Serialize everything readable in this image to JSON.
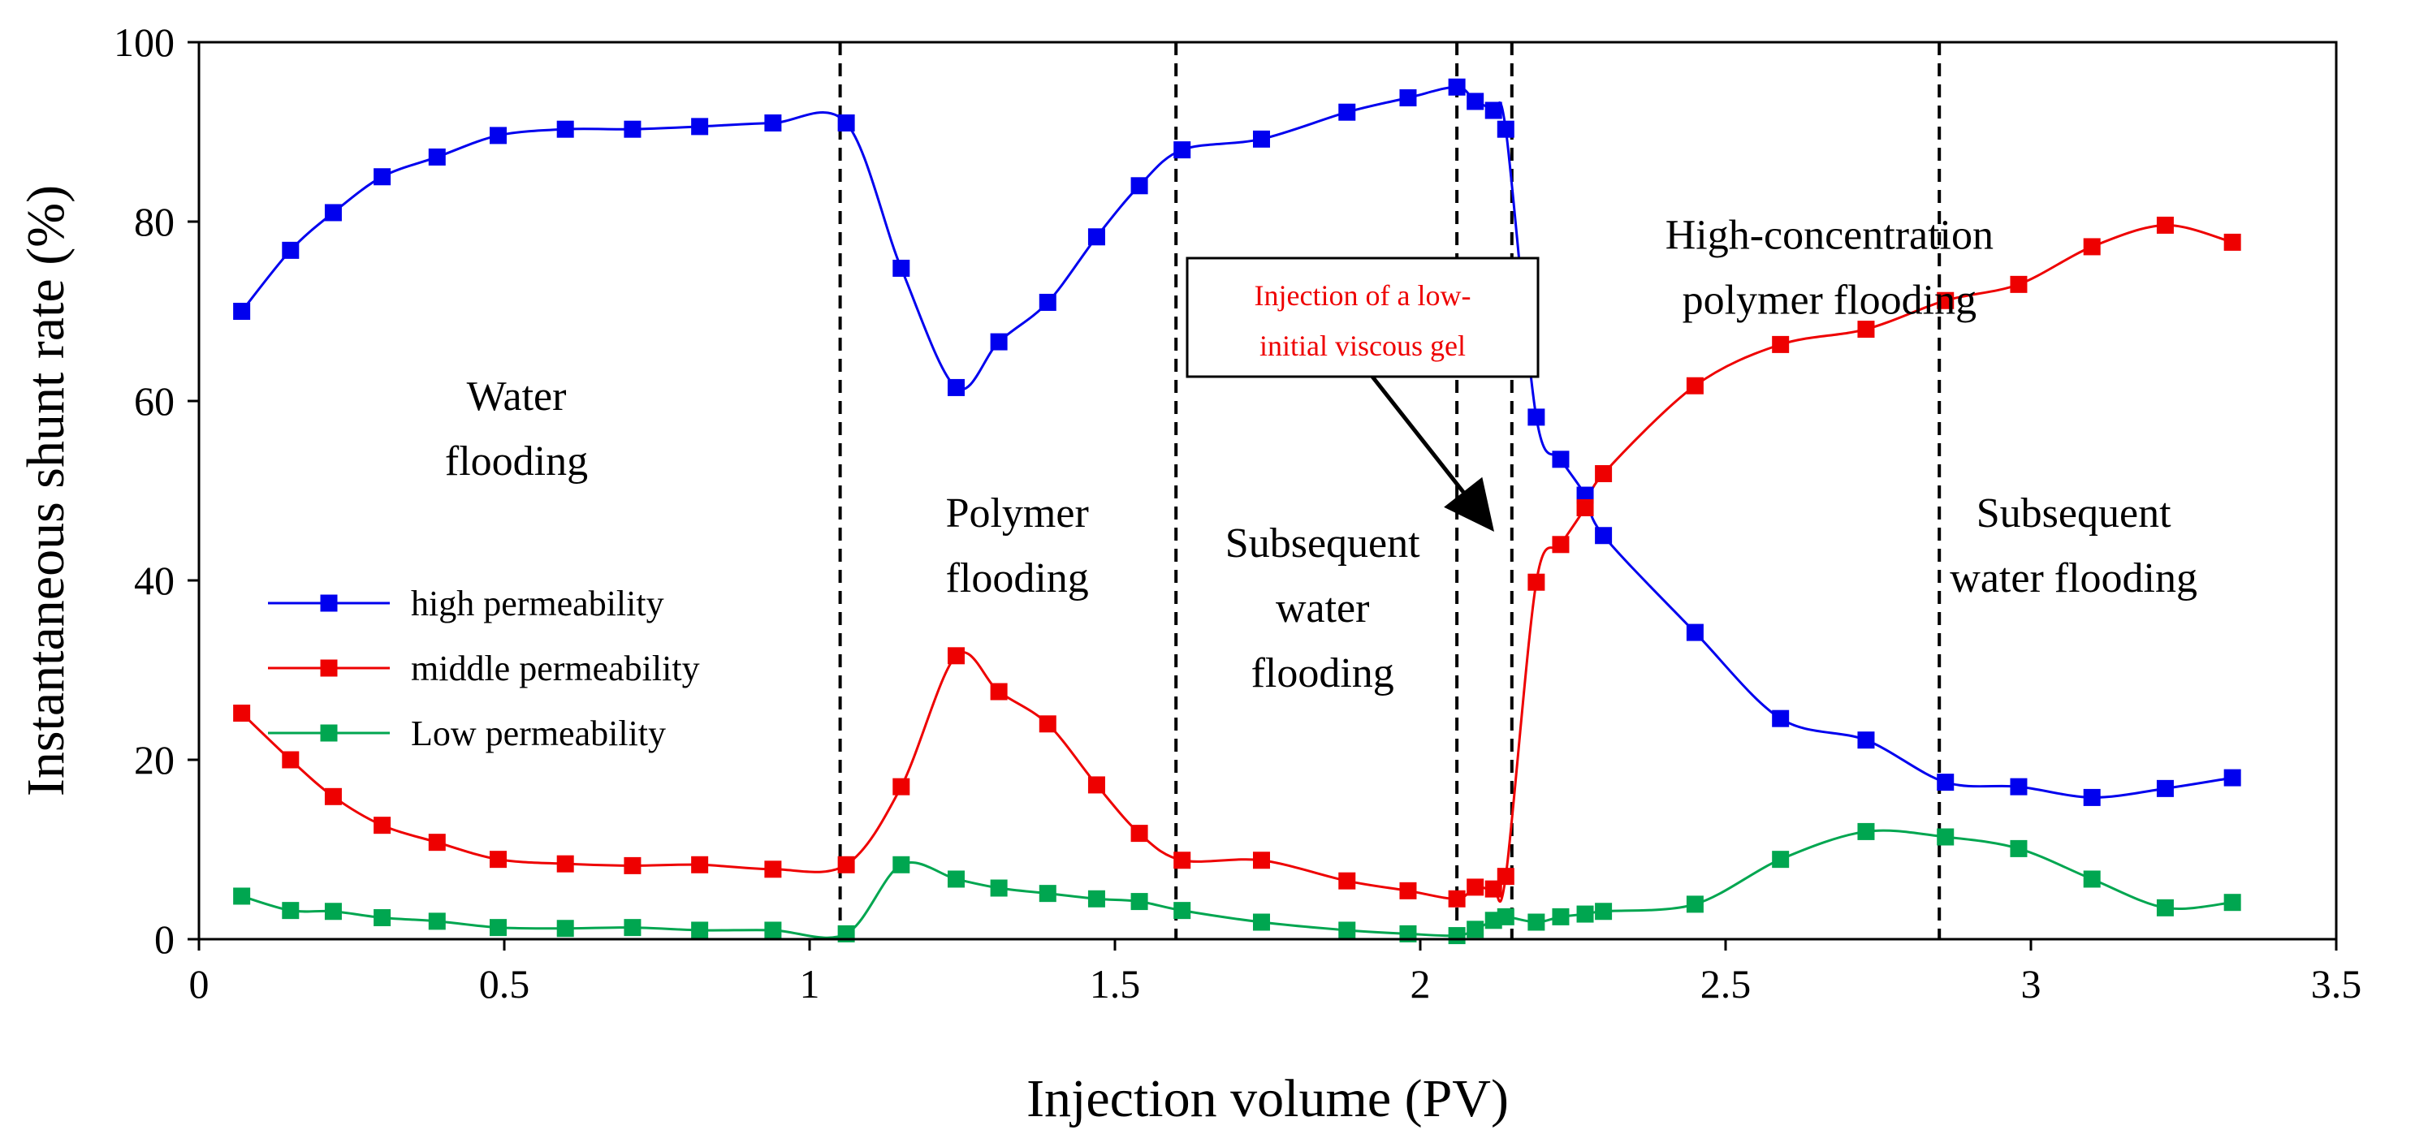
{
  "chart_data": {
    "type": "line",
    "xlabel": "Injection volume (PV)",
    "ylabel": "Instantaneous shunt rate (%)",
    "xlim": [
      0,
      3.5
    ],
    "ylim": [
      0,
      100
    ],
    "xticks": [
      "0",
      "0.5",
      "1",
      "1.5",
      "2",
      "2.5",
      "3",
      "3.5"
    ],
    "yticks": [
      "0",
      "20",
      "40",
      "60",
      "80",
      "100"
    ],
    "grid": false,
    "legend_position": "left-middle",
    "series": [
      {
        "name": "high permeability",
        "color": "#0000ee",
        "points": [
          [
            0.07,
            70
          ],
          [
            0.15,
            76.8
          ],
          [
            0.22,
            81
          ],
          [
            0.3,
            85
          ],
          [
            0.39,
            87.2
          ],
          [
            0.49,
            89.6
          ],
          [
            0.6,
            90.3
          ],
          [
            0.71,
            90.3
          ],
          [
            0.82,
            90.6
          ],
          [
            0.94,
            91
          ],
          [
            1.06,
            91
          ],
          [
            1.15,
            74.8
          ],
          [
            1.24,
            61.5
          ],
          [
            1.31,
            66.6
          ],
          [
            1.39,
            71
          ],
          [
            1.47,
            78.3
          ],
          [
            1.54,
            84
          ],
          [
            1.61,
            88
          ],
          [
            1.74,
            89.2
          ],
          [
            1.88,
            92.2
          ],
          [
            1.98,
            93.8
          ],
          [
            2.06,
            95
          ],
          [
            2.09,
            93.4
          ],
          [
            2.12,
            92.4
          ],
          [
            2.14,
            90.3
          ],
          [
            2.19,
            58.2
          ],
          [
            2.23,
            53.5
          ],
          [
            2.27,
            49.5
          ],
          [
            2.3,
            45
          ],
          [
            2.45,
            34.2
          ],
          [
            2.59,
            24.6
          ],
          [
            2.73,
            22.2
          ],
          [
            2.86,
            17.5
          ],
          [
            2.98,
            17
          ],
          [
            3.1,
            15.8
          ],
          [
            3.22,
            16.8
          ],
          [
            3.33,
            18
          ]
        ]
      },
      {
        "name": "middle permeability",
        "color": "#ee0000",
        "points": [
          [
            0.07,
            25.2
          ],
          [
            0.15,
            20
          ],
          [
            0.22,
            15.9
          ],
          [
            0.3,
            12.7
          ],
          [
            0.39,
            10.8
          ],
          [
            0.49,
            8.9
          ],
          [
            0.6,
            8.4
          ],
          [
            0.71,
            8.2
          ],
          [
            0.82,
            8.3
          ],
          [
            0.94,
            7.8
          ],
          [
            1.06,
            8.3
          ],
          [
            1.15,
            17
          ],
          [
            1.24,
            31.6
          ],
          [
            1.31,
            27.6
          ],
          [
            1.39,
            24
          ],
          [
            1.47,
            17.2
          ],
          [
            1.54,
            11.8
          ],
          [
            1.61,
            8.8
          ],
          [
            1.74,
            8.8
          ],
          [
            1.88,
            6.5
          ],
          [
            1.98,
            5.4
          ],
          [
            2.06,
            4.5
          ],
          [
            2.09,
            5.8
          ],
          [
            2.12,
            5.6
          ],
          [
            2.14,
            7
          ],
          [
            2.19,
            39.8
          ],
          [
            2.23,
            44
          ],
          [
            2.27,
            48.1
          ],
          [
            2.3,
            51.9
          ],
          [
            2.45,
            61.7
          ],
          [
            2.59,
            66.3
          ],
          [
            2.73,
            68
          ],
          [
            2.86,
            71.2
          ],
          [
            2.98,
            73
          ],
          [
            3.1,
            77.2
          ],
          [
            3.22,
            79.6
          ],
          [
            3.33,
            77.7
          ]
        ]
      },
      {
        "name": "Low permeability",
        "color": "#00a650",
        "points": [
          [
            0.07,
            4.8
          ],
          [
            0.15,
            3.2
          ],
          [
            0.22,
            3.1
          ],
          [
            0.3,
            2.4
          ],
          [
            0.39,
            2
          ],
          [
            0.49,
            1.3
          ],
          [
            0.6,
            1.2
          ],
          [
            0.71,
            1.3
          ],
          [
            0.82,
            1
          ],
          [
            0.94,
            1
          ],
          [
            1.06,
            0.6
          ],
          [
            1.15,
            8.3
          ],
          [
            1.24,
            6.7
          ],
          [
            1.31,
            5.7
          ],
          [
            1.39,
            5.1
          ],
          [
            1.47,
            4.5
          ],
          [
            1.54,
            4.2
          ],
          [
            1.61,
            3.2
          ],
          [
            1.74,
            1.9
          ],
          [
            1.88,
            1
          ],
          [
            1.98,
            0.6
          ],
          [
            2.06,
            0.4
          ],
          [
            2.09,
            1.1
          ],
          [
            2.12,
            2.1
          ],
          [
            2.14,
            2.5
          ],
          [
            2.19,
            1.9
          ],
          [
            2.23,
            2.5
          ],
          [
            2.27,
            2.8
          ],
          [
            2.3,
            3.1
          ],
          [
            2.45,
            3.9
          ],
          [
            2.59,
            8.9
          ],
          [
            2.73,
            12
          ],
          [
            2.86,
            11.4
          ],
          [
            2.98,
            10.1
          ],
          [
            3.1,
            6.7
          ],
          [
            3.22,
            3.5
          ],
          [
            3.33,
            4.1
          ]
        ]
      }
    ],
    "phase_boundaries": [
      1.05,
      1.6,
      2.06,
      2.15,
      2.85
    ],
    "annotations": [
      {
        "lines": [
          "Water",
          "flooding"
        ],
        "x": 0.52,
        "y": 57
      },
      {
        "lines": [
          "Polymer",
          "flooding"
        ],
        "x": 1.34,
        "y": 44
      },
      {
        "lines": [
          "Subsequent",
          "water",
          "flooding"
        ],
        "x": 1.84,
        "y": 37
      },
      {
        "lines": [
          "High-concentration",
          "polymer flooding"
        ],
        "x": 2.67,
        "y": 75
      },
      {
        "lines": [
          "Subsequent",
          "water flooding"
        ],
        "x": 3.07,
        "y": 44
      }
    ],
    "callout": {
      "lines": [
        "Injection of a low-",
        "initial viscous gel"
      ],
      "color": "#ee0000"
    }
  }
}
